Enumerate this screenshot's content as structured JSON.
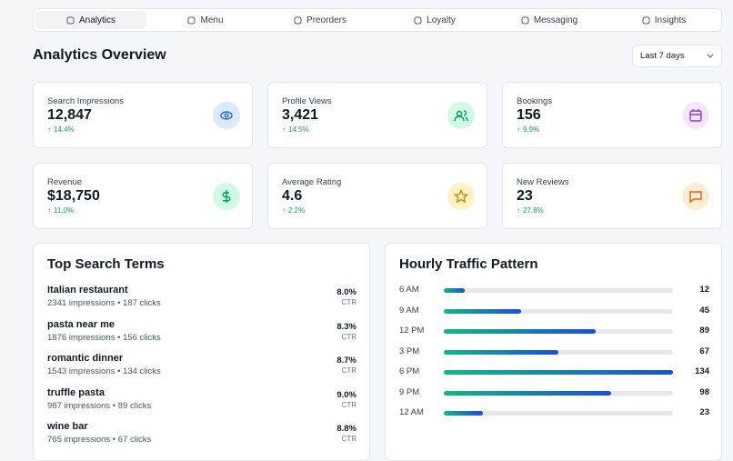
{
  "nav": {
    "tabs": [
      "Analytics",
      "Menu",
      "Preorders",
      "Loyalty",
      "Messaging",
      "Insights"
    ]
  },
  "header": {
    "title": "Analytics Overview",
    "range": "Last 7 days"
  },
  "stats": [
    {
      "label": "Search Impressions",
      "value": "12,847",
      "change": "14.4%"
    },
    {
      "label": "Profile Views",
      "value": "3,421",
      "change": "14.5%"
    },
    {
      "label": "Bookings",
      "value": "156",
      "change": "9.9%"
    },
    {
      "label": "Revenue",
      "value": "$18,750",
      "change": "11.0%"
    },
    {
      "label": "Average Rating",
      "value": "4.6",
      "change": "2.2%"
    },
    {
      "label": "New Reviews",
      "value": "23",
      "change": "27.8%"
    }
  ],
  "search_terms": {
    "title": "Top Search Terms",
    "ctr_label": "CTR",
    "rows": [
      {
        "term": "Italian restaurant",
        "detail": "2341 impressions • 187 clicks",
        "ctr": "8.0%"
      },
      {
        "term": "pasta near me",
        "detail": "1876 impressions • 156 clicks",
        "ctr": "8.3%"
      },
      {
        "term": "romantic dinner",
        "detail": "1543 impressions • 134 clicks",
        "ctr": "8.7%"
      },
      {
        "term": "truffle pasta",
        "detail": "987 impressions • 89 clicks",
        "ctr": "9.0%"
      },
      {
        "term": "wine bar",
        "detail": "765 impressions • 67 clicks",
        "ctr": "8.8%"
      }
    ]
  },
  "hourly": {
    "title": "Hourly Traffic Pattern",
    "rows": [
      {
        "label": "6 AM",
        "value": 12
      },
      {
        "label": "9 AM",
        "value": 45
      },
      {
        "label": "12 PM",
        "value": 89
      },
      {
        "label": "3 PM",
        "value": 67
      },
      {
        "label": "6 PM",
        "value": 134
      },
      {
        "label": "9 PM",
        "value": 98
      },
      {
        "label": "12 AM",
        "value": 23
      }
    ]
  }
}
